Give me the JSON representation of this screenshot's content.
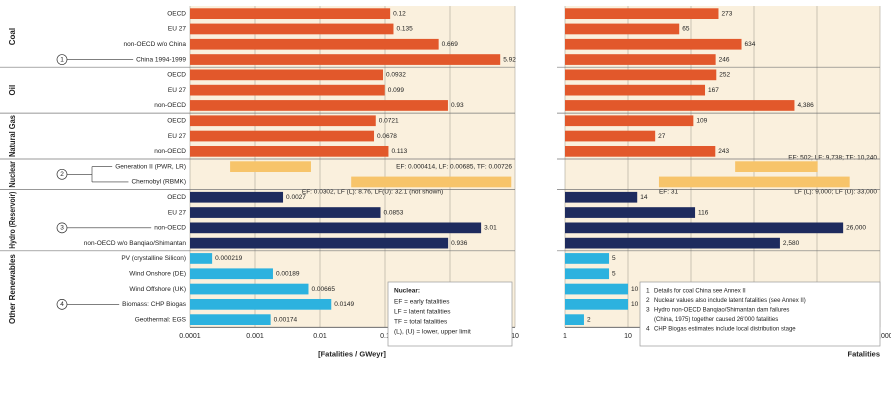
{
  "chart_data": [
    {
      "type": "bar",
      "xscale": "log",
      "xlim": [
        0.0001,
        10
      ],
      "xticks": [
        0.0001,
        0.001,
        0.01,
        0.1,
        1,
        10
      ],
      "xlabel": "[Fatalities / GWeyr]",
      "grid": true,
      "groups": [
        {
          "name": "Coal",
          "color": "#e2582b",
          "rows": [
            {
              "label": "OECD",
              "value": 0.12
            },
            {
              "label": "EU 27",
              "value": 0.135
            },
            {
              "label": "non-OECD w/o China",
              "value": 0.669
            },
            {
              "label": "China 1994-1999",
              "value": 5.92,
              "note": "1"
            }
          ]
        },
        {
          "name": "Oil",
          "color": "#e2582b",
          "rows": [
            {
              "label": "OECD",
              "value": 0.0932
            },
            {
              "label": "EU 27",
              "value": 0.099
            },
            {
              "label": "non-OECD",
              "value": 0.93
            }
          ]
        },
        {
          "name": "Natural Gas",
          "color": "#e2582b",
          "rows": [
            {
              "label": "OECD",
              "value": 0.0721
            },
            {
              "label": "EU 27",
              "value": 0.0678
            },
            {
              "label": "non-OECD",
              "value": 0.113
            }
          ]
        },
        {
          "name": "Nuclear",
          "color": "#f7c46a",
          "note": "2",
          "rows": [
            {
              "label": "Generation II (PWR, LR)",
              "values": [
                0.000414,
                0.00726
              ],
              "annotations": [
                "EF: 0.000414, LF: 0.00685, TF: 0.00726"
              ]
            },
            {
              "label": "Chernobyl (RBMK)",
              "values": [
                0.0302,
                8.76
              ],
              "annotations": [
                "EF: 0.0302, LF (L): 8.76, LF(U): 32.1 (not shown)"
              ]
            }
          ]
        },
        {
          "name": "Hydro (Reservoir)",
          "color": "#1e2b5e",
          "rows": [
            {
              "label": "OECD",
              "value": 0.0027
            },
            {
              "label": "EU 27",
              "value": 0.0853
            },
            {
              "label": "non-OECD",
              "value": 3.01,
              "note": "3"
            },
            {
              "label": "non-OECD w/o Banqiao/Shimantan",
              "value": 0.936
            }
          ]
        },
        {
          "name": "Other Renewables",
          "color": "#2cb2df",
          "rows": [
            {
              "label": "PV (crystalline Silicon)",
              "value": 0.000219
            },
            {
              "label": "Wind Onshore (DE)",
              "value": 0.00189
            },
            {
              "label": "Wind Offshore (UK)",
              "value": 0.00665
            },
            {
              "label": "Biomass: CHP Biogas",
              "value": 0.0149,
              "note": "4"
            },
            {
              "label": "Geothermal: EGS",
              "value": 0.00174
            }
          ]
        }
      ],
      "legend": {
        "title": "Nuclear:",
        "items": [
          "EF = early fatalities",
          "LF = latent fatalities",
          "TF = total fatalities",
          "(L), (U) = lower, upper limit"
        ]
      }
    },
    {
      "type": "bar",
      "xscale": "log",
      "xlim": [
        1,
        100000
      ],
      "xticks": [
        1,
        10,
        100,
        {
          "value": 1000,
          "label": "1,000"
        },
        {
          "value": 10000,
          "label": "10,000"
        },
        {
          "value": 100000,
          "label": "100,000"
        }
      ],
      "xlabel": "Fatalities",
      "grid": true,
      "rows": [
        {
          "value": 273
        },
        {
          "value": 65
        },
        {
          "value": 634
        },
        {
          "value": 246
        },
        {
          "value": 252
        },
        {
          "value": 167
        },
        {
          "value": 4386,
          "value_label": "4,386"
        },
        {
          "value": 109
        },
        {
          "value": 27
        },
        {
          "value": 243
        },
        {
          "values": [
            502,
            10240
          ],
          "annotations": [
            "EF: 502; LF: 9,738; TF: 10,240"
          ]
        },
        {
          "values": [
            31,
            33000
          ],
          "annotations": [
            "EF: 31",
            "LF (L): 9,000; LF (U): 33,000"
          ]
        },
        {
          "value": 14
        },
        {
          "value": 116
        },
        {
          "value": 26000,
          "value_label": "26,000"
        },
        {
          "value": 2580,
          "value_label": "2,580"
        },
        {
          "value": 5
        },
        {
          "value": 5
        },
        {
          "value": 10
        },
        {
          "value": 10
        },
        {
          "value": 2
        }
      ],
      "notes": [
        {
          "number": "1",
          "lines": [
            "Details for coal China see Annex II"
          ]
        },
        {
          "number": "2",
          "lines": [
            "Nuclear values also include latent fatalities (see Annex II)"
          ]
        },
        {
          "number": "3",
          "lines": [
            "Hydro non-OECD Banqiao/Shimantan dam failures",
            "(China, 1975) together caused 26'000 fatalities"
          ]
        },
        {
          "number": "4",
          "lines": [
            "CHP Biogas estimates include local distribution stage"
          ]
        }
      ]
    }
  ]
}
